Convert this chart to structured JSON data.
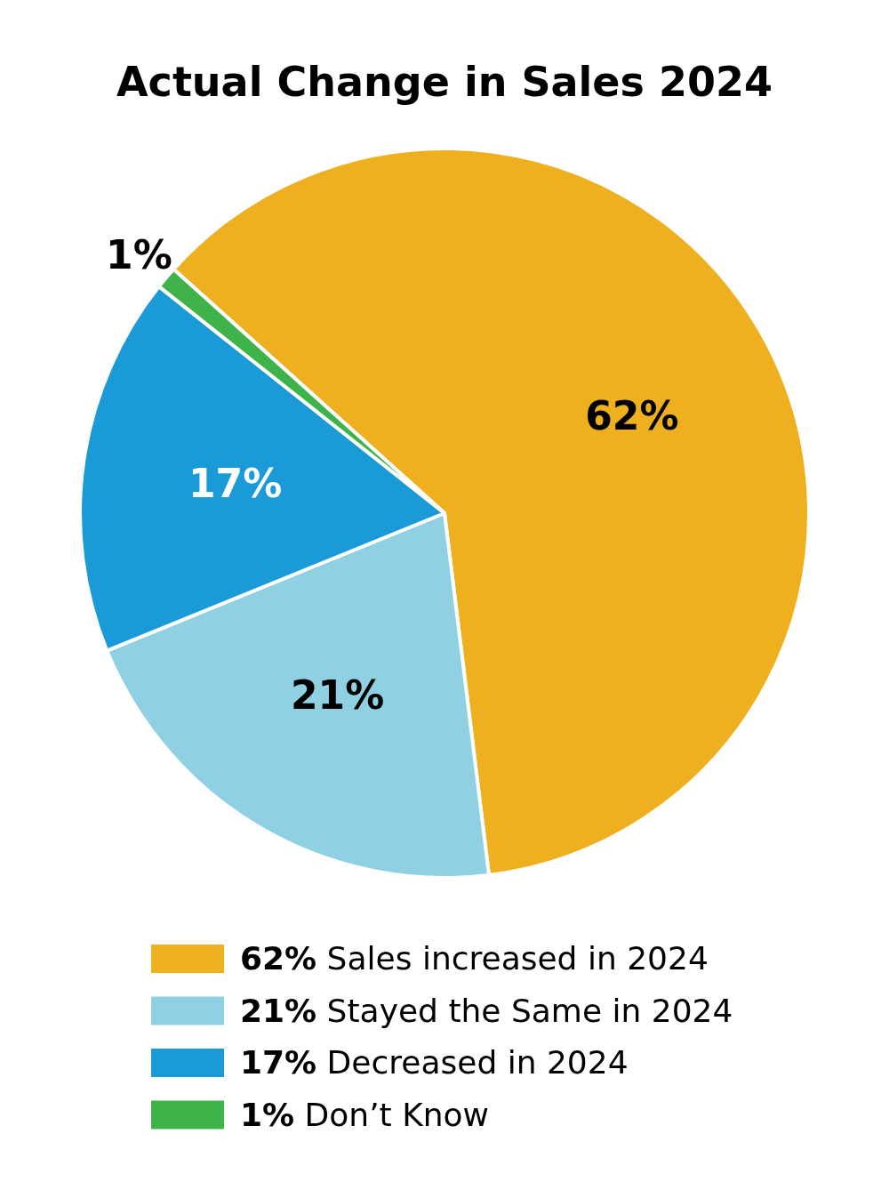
{
  "chart_data": {
    "type": "pie",
    "title": "Actual Change in Sales 2024",
    "categories": [
      "62% Sales increased in 2024",
      "21% Stayed the Same in 2024",
      "17% Decreased in 2024",
      "1% Don’t Know"
    ],
    "values": [
      62,
      21,
      17,
      1
    ],
    "value_labels": [
      "62%",
      "21%",
      "17%",
      "1%"
    ],
    "colors": [
      "#efb01f",
      "#8fd0e2",
      "#1a9ad6",
      "#3db34a"
    ],
    "legend": "bottom"
  }
}
